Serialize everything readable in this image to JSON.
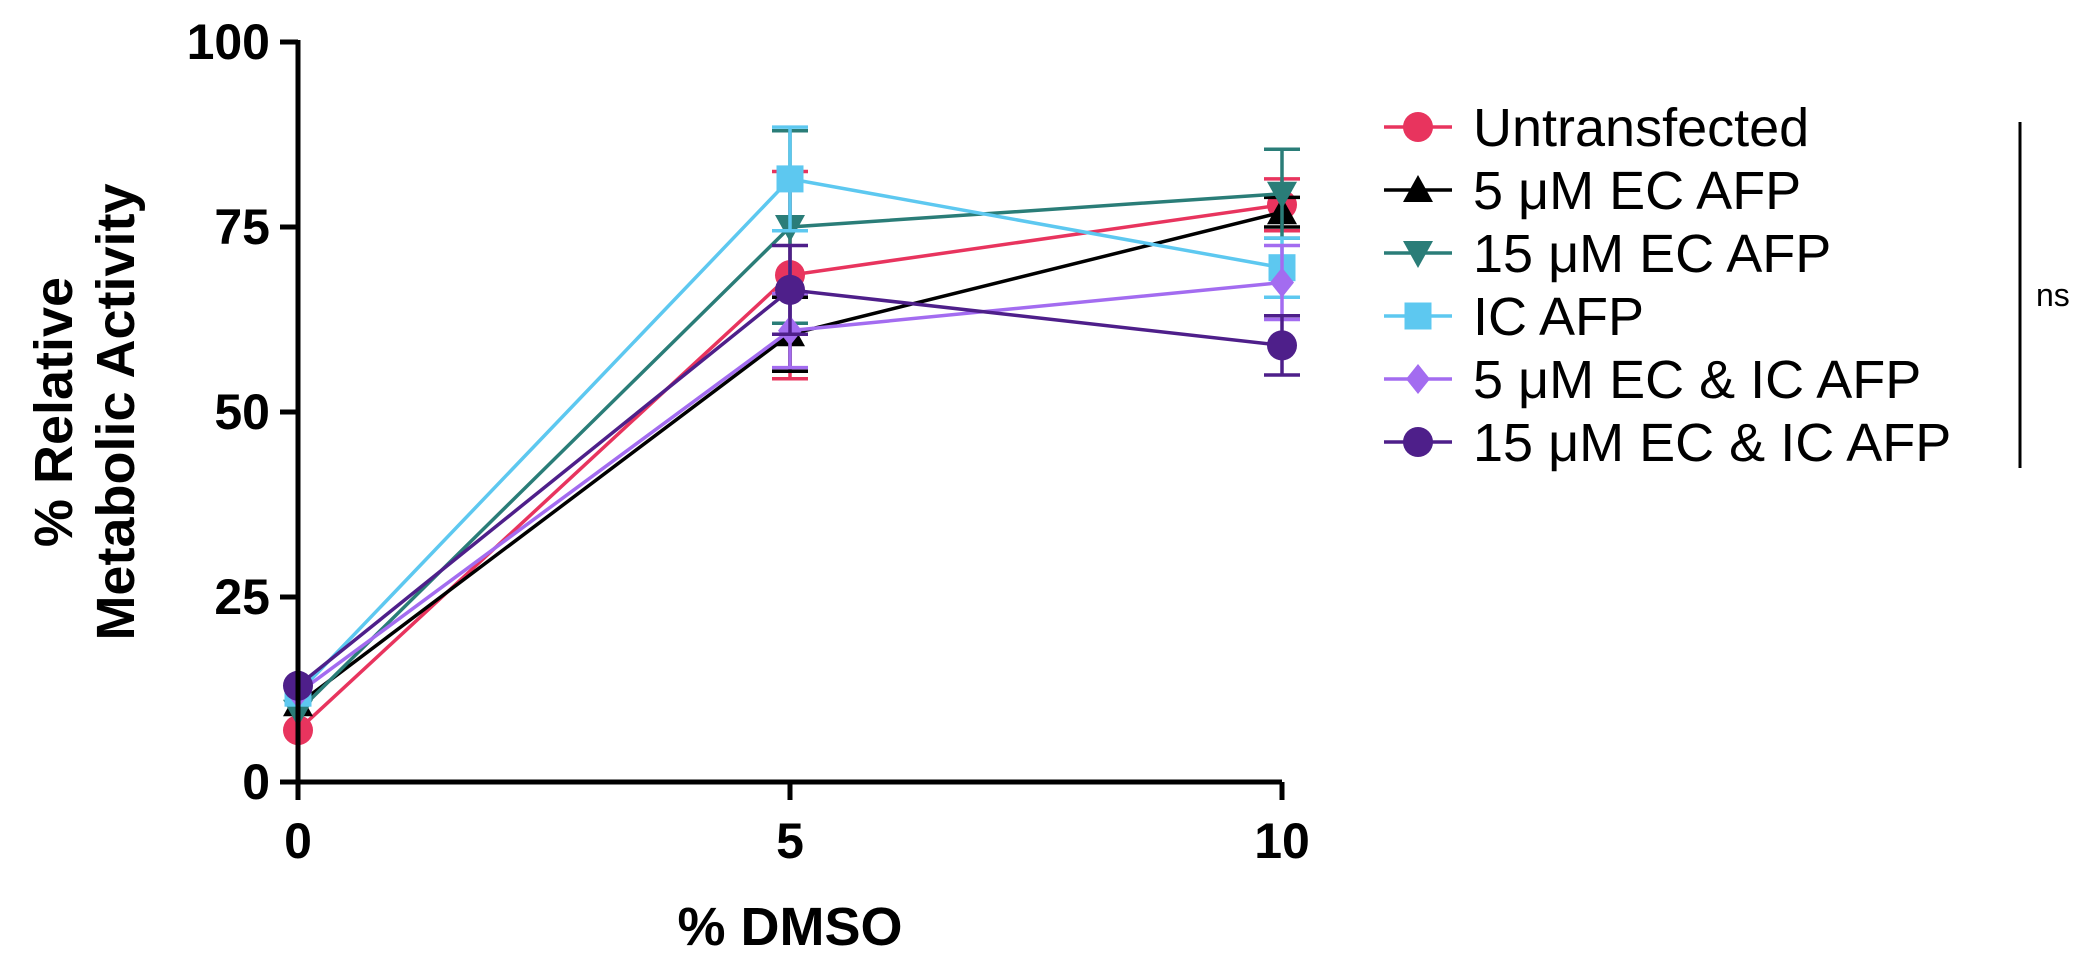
{
  "chart_data": {
    "type": "line",
    "title": "",
    "xlabel": "% DMSO",
    "ylabel_lines": [
      "% Relative",
      "Metabolic Activity"
    ],
    "x": [
      0,
      5,
      10
    ],
    "x_ticks": [
      "0",
      "5",
      "10"
    ],
    "y_ticks": [
      "0",
      "25",
      "50",
      "75",
      "100"
    ],
    "xlim": [
      0,
      10
    ],
    "ylim": [
      0,
      100
    ],
    "grid": false,
    "legend_position": "right",
    "series": [
      {
        "name": "Untransfected",
        "marker": "circle",
        "color": "#e8345e",
        "values": [
          7,
          68.5,
          78
        ],
        "errors": [
          0,
          14,
          3.5
        ]
      },
      {
        "name": "5 μM EC AFP",
        "marker": "triangle-up",
        "color": "#000000",
        "values": [
          10.5,
          60.5,
          77
        ],
        "errors": [
          0,
          5,
          2
        ]
      },
      {
        "name": "15 μM EC AFP",
        "marker": "triangle-down",
        "color": "#2a7d78",
        "values": [
          9.5,
          75,
          79.5
        ],
        "errors": [
          0,
          13,
          6
        ]
      },
      {
        "name": "IC AFP",
        "marker": "square",
        "color": "#5dc8f0",
        "values": [
          12,
          81.5,
          69.5
        ],
        "errors": [
          0,
          7,
          4
        ]
      },
      {
        "name": "5 μM EC & IC AFP",
        "marker": "diamond",
        "color": "#a36cf0",
        "values": [
          12,
          61,
          67.5
        ],
        "errors": [
          0,
          5,
          5
        ]
      },
      {
        "name": "15 μM EC & IC AFP",
        "marker": "circle",
        "color": "#4e1f8a",
        "values": [
          13,
          66.5,
          59
        ],
        "errors": [
          0,
          6,
          4
        ]
      }
    ],
    "annotation": "ns"
  }
}
